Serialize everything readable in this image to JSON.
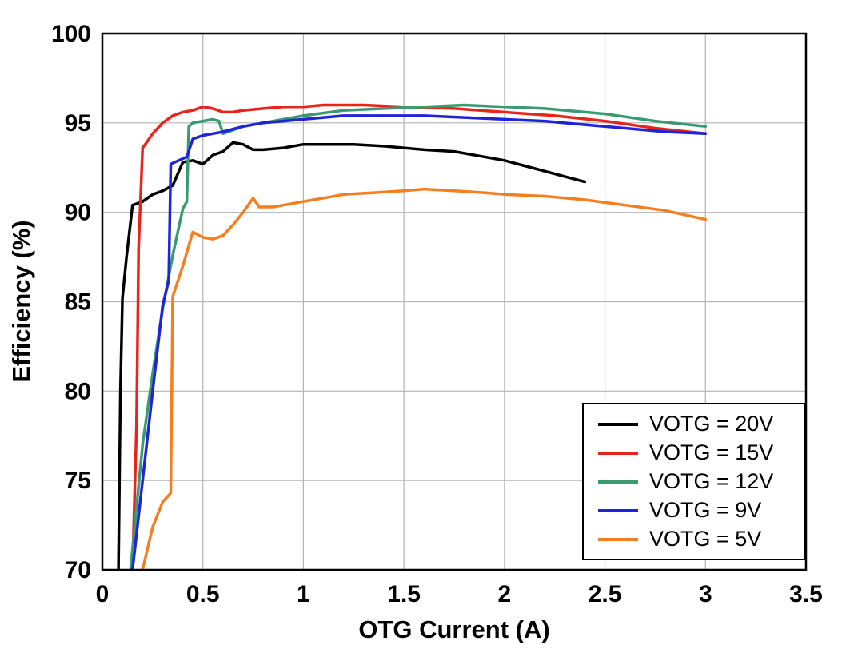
{
  "chart_data": {
    "type": "line",
    "title": "",
    "xlabel": "OTG Current (A)",
    "ylabel": "Efficiency (%)",
    "xlim": [
      0,
      3.5
    ],
    "ylim": [
      70,
      100
    ],
    "xticks": [
      0,
      0.5,
      1,
      1.5,
      2,
      2.5,
      3,
      3.5
    ],
    "yticks": [
      70,
      75,
      80,
      85,
      90,
      95,
      100
    ],
    "grid": true,
    "grid_color": "#b3b3b3",
    "axis_color": "#000000",
    "background_color": "#ffffff",
    "legend_position": "bottom-right",
    "series": [
      {
        "name": "VOTG = 20V",
        "color": "#000000",
        "points": [
          [
            0.08,
            70
          ],
          [
            0.09,
            80
          ],
          [
            0.1,
            85.2
          ],
          [
            0.12,
            87.5
          ],
          [
            0.15,
            90.4
          ],
          [
            0.2,
            90.6
          ],
          [
            0.25,
            91.0
          ],
          [
            0.3,
            91.2
          ],
          [
            0.35,
            91.5
          ],
          [
            0.4,
            92.8
          ],
          [
            0.45,
            92.9
          ],
          [
            0.5,
            92.7
          ],
          [
            0.55,
            93.2
          ],
          [
            0.6,
            93.4
          ],
          [
            0.65,
            93.9
          ],
          [
            0.7,
            93.8
          ],
          [
            0.75,
            93.5
          ],
          [
            0.8,
            93.5
          ],
          [
            0.9,
            93.6
          ],
          [
            1.0,
            93.8
          ],
          [
            1.1,
            93.8
          ],
          [
            1.25,
            93.8
          ],
          [
            1.4,
            93.7
          ],
          [
            1.5,
            93.6
          ],
          [
            1.6,
            93.5
          ],
          [
            1.75,
            93.4
          ],
          [
            1.9,
            93.1
          ],
          [
            2.0,
            92.9
          ],
          [
            2.1,
            92.6
          ],
          [
            2.2,
            92.3
          ],
          [
            2.3,
            92.0
          ],
          [
            2.4,
            91.7
          ]
        ]
      },
      {
        "name": "VOTG = 15V",
        "color": "#e8241d",
        "points": [
          [
            0.15,
            70
          ],
          [
            0.17,
            78
          ],
          [
            0.18,
            88
          ],
          [
            0.2,
            93.6
          ],
          [
            0.22,
            93.9
          ],
          [
            0.25,
            94.4
          ],
          [
            0.3,
            95.0
          ],
          [
            0.35,
            95.4
          ],
          [
            0.4,
            95.6
          ],
          [
            0.45,
            95.7
          ],
          [
            0.5,
            95.9
          ],
          [
            0.55,
            95.8
          ],
          [
            0.6,
            95.6
          ],
          [
            0.65,
            95.6
          ],
          [
            0.7,
            95.7
          ],
          [
            0.8,
            95.8
          ],
          [
            0.9,
            95.9
          ],
          [
            1.0,
            95.9
          ],
          [
            1.1,
            96.0
          ],
          [
            1.3,
            96.0
          ],
          [
            1.5,
            95.9
          ],
          [
            1.75,
            95.8
          ],
          [
            2.0,
            95.6
          ],
          [
            2.25,
            95.4
          ],
          [
            2.5,
            95.1
          ],
          [
            2.75,
            94.7
          ],
          [
            3.0,
            94.4
          ]
        ]
      },
      {
        "name": "VOTG = 12V",
        "color": "#3a9b72",
        "points": [
          [
            0.14,
            70
          ],
          [
            0.2,
            77
          ],
          [
            0.25,
            81
          ],
          [
            0.3,
            84.6
          ],
          [
            0.35,
            87.6
          ],
          [
            0.4,
            90.2
          ],
          [
            0.42,
            90.6
          ],
          [
            0.43,
            94.8
          ],
          [
            0.45,
            95.0
          ],
          [
            0.5,
            95.1
          ],
          [
            0.55,
            95.2
          ],
          [
            0.58,
            95.1
          ],
          [
            0.6,
            94.4
          ],
          [
            0.65,
            94.6
          ],
          [
            0.7,
            94.8
          ],
          [
            0.8,
            95.0
          ],
          [
            0.9,
            95.2
          ],
          [
            1.0,
            95.4
          ],
          [
            1.2,
            95.7
          ],
          [
            1.4,
            95.8
          ],
          [
            1.6,
            95.9
          ],
          [
            1.8,
            96.0
          ],
          [
            2.0,
            95.9
          ],
          [
            2.2,
            95.8
          ],
          [
            2.5,
            95.5
          ],
          [
            2.75,
            95.1
          ],
          [
            3.0,
            94.8
          ]
        ]
      },
      {
        "name": "VOTG = 9V",
        "color": "#2024d8",
        "points": [
          [
            0.15,
            70
          ],
          [
            0.2,
            75
          ],
          [
            0.25,
            80
          ],
          [
            0.3,
            84.8
          ],
          [
            0.33,
            86.2
          ],
          [
            0.34,
            92.7
          ],
          [
            0.38,
            92.9
          ],
          [
            0.42,
            93.1
          ],
          [
            0.45,
            94.1
          ],
          [
            0.5,
            94.3
          ],
          [
            0.55,
            94.4
          ],
          [
            0.6,
            94.5
          ],
          [
            0.7,
            94.8
          ],
          [
            0.8,
            95.0
          ],
          [
            0.9,
            95.1
          ],
          [
            1.0,
            95.2
          ],
          [
            1.2,
            95.4
          ],
          [
            1.4,
            95.4
          ],
          [
            1.6,
            95.4
          ],
          [
            1.8,
            95.3
          ],
          [
            2.0,
            95.2
          ],
          [
            2.2,
            95.1
          ],
          [
            2.4,
            94.9
          ],
          [
            2.6,
            94.7
          ],
          [
            2.8,
            94.5
          ],
          [
            3.0,
            94.4
          ]
        ]
      },
      {
        "name": "VOTG = 5V",
        "color": "#f57e20",
        "points": [
          [
            0.2,
            70
          ],
          [
            0.25,
            72.4
          ],
          [
            0.3,
            73.8
          ],
          [
            0.34,
            74.3
          ],
          [
            0.35,
            85.3
          ],
          [
            0.4,
            87.0
          ],
          [
            0.45,
            88.9
          ],
          [
            0.5,
            88.6
          ],
          [
            0.55,
            88.5
          ],
          [
            0.6,
            88.7
          ],
          [
            0.65,
            89.3
          ],
          [
            0.7,
            90.0
          ],
          [
            0.75,
            90.8
          ],
          [
            0.78,
            90.3
          ],
          [
            0.85,
            90.3
          ],
          [
            0.9,
            90.4
          ],
          [
            1.0,
            90.6
          ],
          [
            1.1,
            90.8
          ],
          [
            1.2,
            91.0
          ],
          [
            1.35,
            91.1
          ],
          [
            1.5,
            91.2
          ],
          [
            1.6,
            91.3
          ],
          [
            1.75,
            91.2
          ],
          [
            1.9,
            91.1
          ],
          [
            2.0,
            91.0
          ],
          [
            2.2,
            90.9
          ],
          [
            2.4,
            90.7
          ],
          [
            2.6,
            90.4
          ],
          [
            2.8,
            90.1
          ],
          [
            3.0,
            89.6
          ]
        ]
      }
    ]
  }
}
